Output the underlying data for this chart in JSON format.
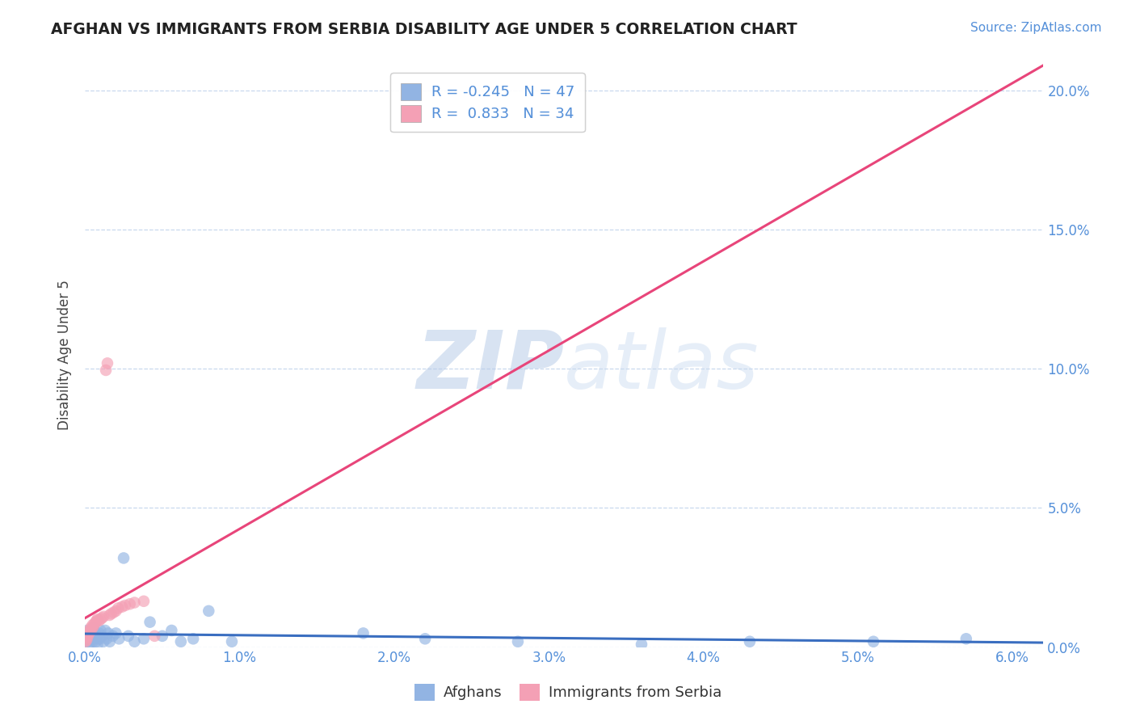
{
  "title": "AFGHAN VS IMMIGRANTS FROM SERBIA DISABILITY AGE UNDER 5 CORRELATION CHART",
  "source": "Source: ZipAtlas.com",
  "ylabel_label": "Disability Age Under 5",
  "legend_label1": "Afghans",
  "legend_label2": "Immigrants from Serbia",
  "R1": -0.245,
  "N1": 47,
  "R2": 0.833,
  "N2": 34,
  "color1": "#92b4e3",
  "color2": "#f4a0b5",
  "line_color1": "#3a6ec0",
  "line_color2": "#e8457a",
  "xlim": [
    0.0,
    0.062
  ],
  "ylim": [
    0.0,
    0.21
  ],
  "xticks": [
    0.0,
    0.01,
    0.02,
    0.03,
    0.04,
    0.05,
    0.06
  ],
  "yticks": [
    0.0,
    0.05,
    0.1,
    0.15,
    0.2
  ],
  "background": "#ffffff",
  "tick_color": "#5590d9",
  "grid_color": "#c8d8ee",
  "afghans_x": [
    5e-05,
    8e-05,
    0.0001,
    0.00015,
    0.0002,
    0.00025,
    0.00028,
    0.00032,
    0.0004,
    0.00045,
    0.0005,
    0.00055,
    0.0006,
    0.00065,
    0.0007,
    0.00075,
    0.0008,
    0.0009,
    0.00095,
    0.001,
    0.0011,
    0.0012,
    0.0013,
    0.0014,
    0.0015,
    0.0016,
    0.0018,
    0.002,
    0.0022,
    0.0025,
    0.0028,
    0.0032,
    0.0038,
    0.0042,
    0.005,
    0.0056,
    0.0062,
    0.007,
    0.008,
    0.0095,
    0.018,
    0.022,
    0.028,
    0.036,
    0.043,
    0.051,
    0.057
  ],
  "afghans_y": [
    0.005,
    0.003,
    0.004,
    0.006,
    0.002,
    0.001,
    0.003,
    0.005,
    0.006,
    0.004,
    0.002,
    0.007,
    0.003,
    0.005,
    0.002,
    0.004,
    0.001,
    0.005,
    0.003,
    0.006,
    0.004,
    0.002,
    0.006,
    0.003,
    0.005,
    0.002,
    0.004,
    0.005,
    0.003,
    0.032,
    0.004,
    0.002,
    0.003,
    0.009,
    0.004,
    0.006,
    0.002,
    0.003,
    0.013,
    0.002,
    0.005,
    0.003,
    0.002,
    0.001,
    0.002,
    0.002,
    0.003
  ],
  "serbia_x": [
    3e-05,
    5e-05,
    8e-05,
    0.0001,
    0.00015,
    0.00018,
    0.00022,
    0.00028,
    0.00033,
    0.00038,
    0.00044,
    0.0005,
    0.00055,
    0.00062,
    0.0007,
    0.00075,
    0.0008,
    0.0009,
    0.001,
    0.0011,
    0.0012,
    0.00135,
    0.00145,
    0.00158,
    0.0017,
    0.00185,
    0.002,
    0.00215,
    0.0024,
    0.0026,
    0.0029,
    0.0032,
    0.0038,
    0.0045
  ],
  "serbia_y": [
    0.002,
    0.003,
    0.004,
    0.0025,
    0.0035,
    0.005,
    0.0045,
    0.006,
    0.0055,
    0.007,
    0.0065,
    0.008,
    0.0075,
    0.0085,
    0.009,
    0.0095,
    0.01,
    0.0095,
    0.01,
    0.0105,
    0.011,
    0.0995,
    0.102,
    0.0115,
    0.012,
    0.0125,
    0.013,
    0.014,
    0.0145,
    0.015,
    0.0155,
    0.016,
    0.0165,
    0.004
  ]
}
